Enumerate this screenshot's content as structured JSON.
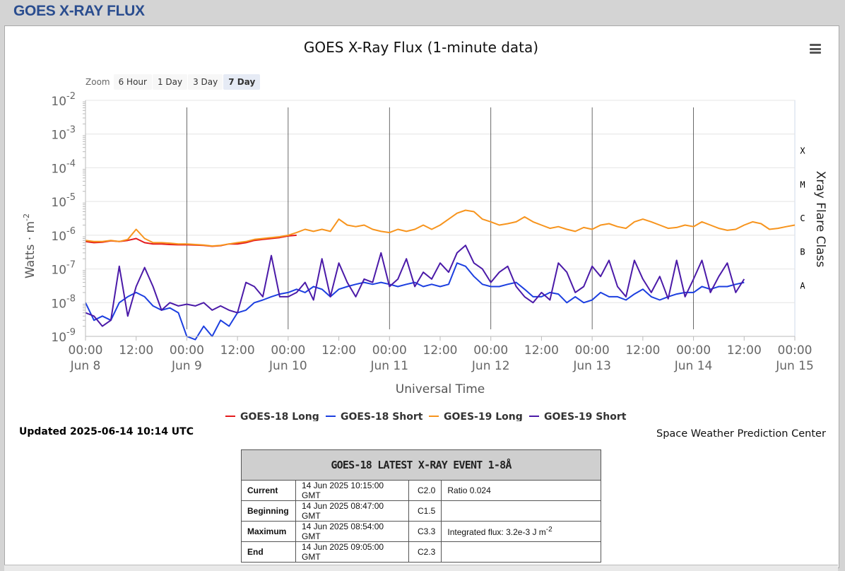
{
  "page": {
    "title": "GOES X-RAY FLUX"
  },
  "zoom": {
    "label": "Zoom",
    "buttons": [
      "6 Hour",
      "1 Day",
      "3 Day",
      "7 Day"
    ],
    "active": "7 Day"
  },
  "menu_icon": "hamburger-menu-icon",
  "updated": "Updated 2025-06-14 10:14 UTC",
  "credit": "Space Weather Prediction Center",
  "event_table": {
    "title": "GOES-18 LATEST X-RAY EVENT 1-8Å",
    "rows": [
      {
        "label": "Current",
        "time": "14 Jun 2025 10:15:00 GMT",
        "class": "C2.0",
        "note": "Ratio 0.024"
      },
      {
        "label": "Beginning",
        "time": "14 Jun 2025 08:47:00 GMT",
        "class": "C1.5",
        "note": ""
      },
      {
        "label": "Maximum",
        "time": "14 Jun 2025 08:54:00 GMT",
        "class": "C3.3",
        "note": "Integrated flux: 3.2e-3 J m",
        "note_sup": "-2"
      },
      {
        "label": "End",
        "time": "14 Jun 2025 09:05:00 GMT",
        "class": "C2.3",
        "note": ""
      }
    ]
  },
  "chart_data": {
    "type": "line",
    "title": "GOES X-Ray Flux (1-minute data)",
    "xlabel": "Universal Time",
    "ylabel": "Watts · m",
    "ylabel_sup": "-2",
    "y2label": "Xray Flare Class",
    "y_scale": "log",
    "ylim": [
      1e-09,
      0.01
    ],
    "y_ticks": [
      {
        "base": "10",
        "exp": "-2"
      },
      {
        "base": "10",
        "exp": "-3"
      },
      {
        "base": "10",
        "exp": "-4"
      },
      {
        "base": "10",
        "exp": "-5"
      },
      {
        "base": "10",
        "exp": "-6"
      },
      {
        "base": "10",
        "exp": "-7"
      },
      {
        "base": "10",
        "exp": "-8"
      },
      {
        "base": "10",
        "exp": "-9"
      }
    ],
    "flare_classes": [
      "X",
      "M",
      "C",
      "B",
      "A"
    ],
    "x_unit": "hours since Jun 8 00:00 UTC",
    "xlim": [
      0,
      168
    ],
    "x_ticks": [
      {
        "x": 0,
        "time": "00:00",
        "date": "Jun 8"
      },
      {
        "x": 12,
        "time": "12:00",
        "date": ""
      },
      {
        "x": 24,
        "time": "00:00",
        "date": "Jun 9"
      },
      {
        "x": 36,
        "time": "12:00",
        "date": ""
      },
      {
        "x": 48,
        "time": "00:00",
        "date": "Jun 10"
      },
      {
        "x": 60,
        "time": "12:00",
        "date": ""
      },
      {
        "x": 72,
        "time": "00:00",
        "date": "Jun 11"
      },
      {
        "x": 84,
        "time": "12:00",
        "date": ""
      },
      {
        "x": 96,
        "time": "00:00",
        "date": "Jun 12"
      },
      {
        "x": 108,
        "time": "12:00",
        "date": ""
      },
      {
        "x": 120,
        "time": "00:00",
        "date": "Jun 13"
      },
      {
        "x": 132,
        "time": "12:00",
        "date": ""
      },
      {
        "x": 144,
        "time": "00:00",
        "date": "Jun 14"
      },
      {
        "x": 156,
        "time": "12:00",
        "date": ""
      },
      {
        "x": 168,
        "time": "00:00",
        "date": "Jun 15"
      }
    ],
    "day_lines": [
      24,
      48,
      72,
      96,
      120,
      144
    ],
    "series": [
      {
        "name": "GOES-18 Long",
        "color": "#e41a1c",
        "x": [
          0,
          2,
          4,
          6,
          8,
          10,
          12,
          14,
          16,
          18,
          20,
          22,
          24,
          26,
          28,
          30,
          32,
          34,
          36,
          38,
          40,
          42,
          44,
          46,
          48,
          50
        ],
        "y": [
          6.5e-07,
          6e-07,
          6.2e-07,
          6.8e-07,
          6.5e-07,
          7e-07,
          8e-07,
          6e-07,
          5.5e-07,
          5.5e-07,
          5.3e-07,
          5.2e-07,
          5.2e-07,
          5.1e-07,
          5e-07,
          4.7e-07,
          4.9e-07,
          5.5e-07,
          5.5e-07,
          6e-07,
          7e-07,
          7.5e-07,
          8e-07,
          8.5e-07,
          9.5e-07,
          1e-06
        ]
      },
      {
        "name": "GOES-18 Short",
        "color": "#1c3fe0",
        "x": [
          0,
          2,
          4,
          6,
          8,
          10,
          12,
          14,
          16,
          18,
          20,
          22,
          24,
          26,
          28,
          30,
          32,
          34,
          36,
          38,
          40,
          42,
          44,
          46,
          48,
          50,
          52,
          54,
          56,
          58,
          60,
          62,
          64,
          66,
          68,
          70,
          72,
          74,
          76,
          78,
          80,
          82,
          84,
          86,
          88,
          90,
          92,
          94,
          96,
          98,
          100,
          102,
          104,
          106,
          108,
          110,
          112,
          114,
          116,
          118,
          120,
          122,
          124,
          126,
          128,
          130,
          132,
          134,
          136,
          138,
          140,
          142,
          144,
          146,
          148,
          150,
          152,
          154,
          156
        ],
        "y": [
          1e-08,
          3e-09,
          4e-09,
          3e-09,
          1e-08,
          1.5e-08,
          2e-08,
          1.5e-08,
          8e-09,
          6e-09,
          7e-09,
          5e-09,
          1e-09,
          8e-10,
          2e-09,
          1e-09,
          3e-09,
          2e-09,
          5e-09,
          6e-09,
          1e-08,
          1.2e-08,
          1.5e-08,
          1.8e-08,
          2e-08,
          2.5e-08,
          2e-08,
          3e-08,
          2.5e-08,
          1.5e-08,
          2.5e-08,
          3e-08,
          3.5e-08,
          4e-08,
          3.5e-08,
          4e-08,
          3.5e-08,
          3e-08,
          3.5e-08,
          4e-08,
          3e-08,
          3.5e-08,
          3e-08,
          3.5e-08,
          1.5e-07,
          1.2e-07,
          6e-08,
          3.5e-08,
          3e-08,
          3e-08,
          3.5e-08,
          4e-08,
          2.5e-08,
          1.5e-08,
          1.5e-08,
          2e-08,
          1.8e-08,
          1e-08,
          1.5e-08,
          1e-08,
          1.2e-08,
          2e-08,
          1.5e-08,
          1.5e-08,
          1.2e-08,
          1.8e-08,
          2.5e-08,
          1.5e-08,
          1.2e-08,
          1.5e-08,
          1.8e-08,
          2e-08,
          2e-08,
          3e-08,
          2.5e-08,
          3e-08,
          3e-08,
          3.5e-08,
          4e-08
        ]
      },
      {
        "name": "GOES-19 Long",
        "color": "#f7941d",
        "x": [
          0,
          2,
          4,
          6,
          8,
          10,
          12,
          14,
          16,
          18,
          20,
          22,
          24,
          26,
          28,
          30,
          32,
          34,
          36,
          38,
          40,
          42,
          44,
          46,
          48,
          50,
          52,
          54,
          56,
          58,
          60,
          62,
          64,
          66,
          68,
          70,
          72,
          74,
          76,
          78,
          80,
          82,
          84,
          86,
          88,
          90,
          92,
          94,
          96,
          98,
          100,
          102,
          104,
          106,
          108,
          110,
          112,
          114,
          116,
          118,
          120,
          122,
          124,
          126,
          128,
          130,
          132,
          134,
          136,
          138,
          140,
          142,
          144,
          146,
          148,
          150,
          152,
          154,
          156,
          158,
          160,
          162,
          164,
          166,
          168
        ],
        "y": [
          7e-07,
          6.5e-07,
          6.5e-07,
          7e-07,
          6.5e-07,
          7.5e-07,
          1.5e-06,
          8e-07,
          6e-07,
          6e-07,
          5.8e-07,
          5.5e-07,
          5.5e-07,
          5.3e-07,
          5.1e-07,
          4.8e-07,
          5e-07,
          5.5e-07,
          6e-07,
          6.5e-07,
          7.5e-07,
          8e-07,
          8.5e-07,
          9e-07,
          1e-06,
          1.2e-06,
          1.5e-06,
          1.3e-06,
          1.5e-06,
          1.3e-06,
          3e-06,
          2e-06,
          1.8e-06,
          2e-06,
          1.5e-06,
          1.3e-06,
          1.2e-06,
          1.5e-06,
          1.3e-06,
          1.5e-06,
          2e-06,
          1.5e-06,
          2e-06,
          3e-06,
          4.5e-06,
          5.5e-06,
          5e-06,
          3e-06,
          2.5e-06,
          2e-06,
          2.2e-06,
          2.5e-06,
          3.5e-06,
          2.5e-06,
          2e-06,
          1.6e-06,
          1.8e-06,
          1.5e-06,
          1.3e-06,
          1.7e-06,
          1.5e-06,
          2e-06,
          2.2e-06,
          1.8e-06,
          1.6e-06,
          2.5e-06,
          3e-06,
          2.5e-06,
          2e-06,
          1.6e-06,
          1.7e-06,
          2e-06,
          1.8e-06,
          2.5e-06,
          2e-06,
          1.6e-06,
          1.4e-06,
          1.5e-06,
          2e-06,
          2.5e-06,
          2.2e-06,
          1.5e-06,
          1.6e-06,
          1.8e-06,
          2e-06
        ]
      },
      {
        "name": "GOES-19 Short",
        "color": "#4b1aa8",
        "x": [
          0,
          2,
          4,
          6,
          8,
          10,
          12,
          14,
          16,
          18,
          20,
          22,
          24,
          26,
          28,
          30,
          32,
          34,
          36,
          38,
          40,
          42,
          44,
          46,
          48,
          50,
          52,
          54,
          56,
          58,
          60,
          62,
          64,
          66,
          68,
          70,
          72,
          74,
          76,
          78,
          80,
          82,
          84,
          86,
          88,
          90,
          92,
          94,
          96,
          98,
          100,
          102,
          104,
          106,
          108,
          110,
          112,
          114,
          116,
          118,
          120,
          122,
          124,
          126,
          128,
          130,
          132,
          134,
          136,
          138,
          140,
          142,
          144,
          146,
          148,
          150,
          152,
          154,
          156
        ],
        "y": [
          5e-09,
          4e-09,
          2e-09,
          3e-09,
          1.2e-07,
          4e-09,
          3e-08,
          1.1e-07,
          3e-08,
          6e-09,
          1e-08,
          8e-09,
          9e-09,
          8e-09,
          1e-08,
          6e-09,
          8e-09,
          6e-09,
          5e-09,
          4e-08,
          3e-08,
          1.5e-08,
          2.5e-07,
          1.5e-08,
          1.5e-08,
          2e-08,
          4e-08,
          1.2e-08,
          2e-07,
          1.5e-08,
          1.5e-07,
          4e-08,
          1.5e-08,
          5e-08,
          4e-08,
          3e-07,
          3e-08,
          5e-08,
          2e-07,
          3e-08,
          8e-08,
          5e-08,
          1.5e-07,
          8e-08,
          3e-07,
          5e-07,
          1.5e-07,
          1e-07,
          4e-08,
          8e-08,
          1.2e-07,
          3e-08,
          1.5e-08,
          1e-08,
          2e-08,
          1.2e-08,
          1.5e-07,
          8e-08,
          2e-08,
          3e-08,
          1.2e-07,
          6e-08,
          1.8e-07,
          3e-08,
          1.5e-08,
          1.8e-07,
          5e-08,
          2e-08,
          6e-08,
          1.3e-08,
          1.8e-07,
          1.5e-08,
          5e-08,
          1.8e-07,
          2e-08,
          6e-08,
          1.5e-07,
          2e-08,
          5e-08
        ]
      }
    ]
  }
}
